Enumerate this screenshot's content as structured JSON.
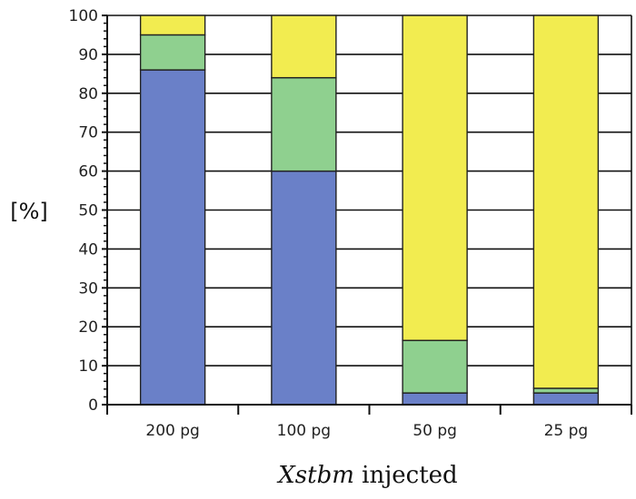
{
  "chart_data": {
    "type": "bar",
    "stacked": true,
    "categories": [
      "200 pg",
      "100 pg",
      "50 pg",
      "25 pg"
    ],
    "series": [
      {
        "color": "#6a80c8",
        "values": [
          86,
          60,
          3,
          3
        ]
      },
      {
        "color": "#8fd08f",
        "values": [
          9,
          24,
          13.5,
          1.2
        ]
      },
      {
        "color": "#f2ec50",
        "values": [
          5,
          16,
          83.5,
          95.8
        ]
      }
    ],
    "xlabel_italic": "Xstbm",
    "xlabel_rest": " injected",
    "ylabel": "[%]",
    "ylim": [
      0,
      100
    ],
    "yticks": [
      0,
      10,
      20,
      30,
      40,
      50,
      60,
      70,
      80,
      90,
      100
    ],
    "grid": true
  }
}
